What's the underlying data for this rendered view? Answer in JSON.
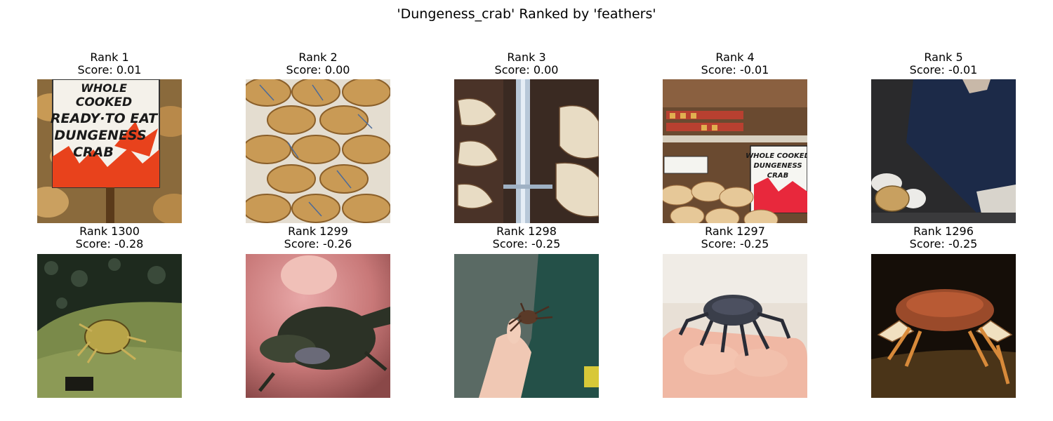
{
  "figure": {
    "title": "'Dungeness_crab' Ranked by 'feathers'"
  },
  "top_row": [
    {
      "rank_label": "Rank 1",
      "score_label": "Score: 0.01",
      "scene": "market-sign"
    },
    {
      "rank_label": "Rank 2",
      "score_label": "Score: 0.00",
      "scene": "crabs-on-ice"
    },
    {
      "rank_label": "Rank 3",
      "score_label": "Score: 0.00",
      "scene": "hanging-crabs"
    },
    {
      "rank_label": "Rank 4",
      "score_label": "Score: -0.01",
      "scene": "market-stall"
    },
    {
      "rank_label": "Rank 5",
      "score_label": "Score: -0.01",
      "scene": "man-holding-crab"
    }
  ],
  "bottom_row": [
    {
      "rank_label": "Rank 1300",
      "score_label": "Score: -0.28",
      "scene": "crab-underwater"
    },
    {
      "rank_label": "Rank 1299",
      "score_label": "Score: -0.26",
      "scene": "crab-in-hand-closeup"
    },
    {
      "rank_label": "Rank 1298",
      "score_label": "Score: -0.25",
      "scene": "small-crab-fingers"
    },
    {
      "rank_label": "Rank 1297",
      "score_label": "Score: -0.25",
      "scene": "crab-on-fingertips"
    },
    {
      "rank_label": "Rank 1296",
      "score_label": "Score: -0.25",
      "scene": "crab-on-sand-night"
    }
  ],
  "image_text": {
    "sign_1": [
      "WHOLE",
      "COOKED",
      "READY·TO EAT",
      "DUNGENESS",
      "CRAB"
    ],
    "sign_4": [
      "WHOLE COOKED",
      "DUNGENESS",
      "CRAB"
    ]
  }
}
